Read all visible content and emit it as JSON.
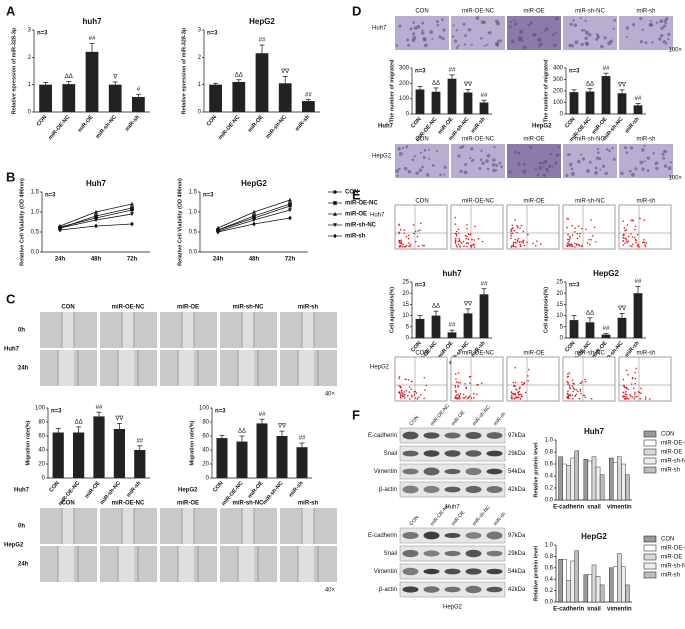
{
  "panel_labels": [
    "A",
    "B",
    "C",
    "D",
    "E",
    "F"
  ],
  "chart_data": [
    {
      "type": "bar",
      "title": "huh7",
      "note": "n=3",
      "ylabel": "Relative epression of miR-328-3p",
      "categories": [
        "CON",
        "miR-OE-NC",
        "miR-OE",
        "miR-sh-NC",
        "miR-sh"
      ],
      "values": [
        1.0,
        1.02,
        2.2,
        1.0,
        0.55
      ],
      "errors": [
        0.08,
        0.1,
        0.3,
        0.1,
        0.1
      ],
      "annotations": [
        null,
        "ΔΔ",
        "##",
        "∇",
        "#"
      ],
      "color": "#222222",
      "ylim": [
        0,
        3
      ],
      "yticks": [
        0,
        1,
        2,
        3
      ]
    },
    {
      "type": "bar",
      "title": "HepG2",
      "note": "n=3",
      "ylabel": "Relative epression of miR-328-3p",
      "categories": [
        "CON",
        "miR-OE-NC",
        "miR-OE",
        "miR-sh-NC",
        "miR-sh"
      ],
      "values": [
        1.0,
        1.1,
        2.15,
        1.05,
        0.4
      ],
      "errors": [
        0.05,
        0.08,
        0.3,
        0.25,
        0.05
      ],
      "annotations": [
        null,
        "ΔΔ",
        "##",
        "∇∇",
        "##"
      ],
      "color": "#222222",
      "ylim": [
        0,
        3
      ],
      "yticks": [
        0,
        1,
        2,
        3
      ]
    },
    {
      "type": "line",
      "title": "Huh7",
      "note": "n=3",
      "ylabel": "Relative Cell Viability (OD 490nm)",
      "categories": [
        "24h",
        "48h",
        "72h"
      ],
      "ylim": [
        0,
        1.5
      ],
      "yticks": [
        {
          "value": 0,
          "label": "0.0"
        },
        {
          "value": 0.5,
          "label": "0.5"
        },
        {
          "value": 1,
          "label": "1.0"
        },
        {
          "value": 1.5,
          "label": "1.5"
        }
      ],
      "series": [
        {
          "name": "CON",
          "marker": "circle",
          "color": "#111111",
          "values": [
            0.62,
            0.85,
            1.05
          ]
        },
        {
          "name": "miR-OE-NC",
          "marker": "square",
          "color": "#111111",
          "values": [
            0.6,
            0.9,
            1.1
          ]
        },
        {
          "name": "miR-OE",
          "marker": "triangle",
          "color": "#111111",
          "values": [
            0.65,
            1.0,
            1.2
          ]
        },
        {
          "name": "miR-sh-NC",
          "marker": "triangle-down",
          "color": "#111111",
          "values": [
            0.6,
            0.8,
            0.95
          ]
        },
        {
          "name": "miR-sh",
          "marker": "diamond",
          "color": "#111111",
          "values": [
            0.55,
            0.65,
            0.7
          ]
        }
      ]
    },
    {
      "type": "line",
      "title": "HepG2",
      "note": "n=3",
      "ylabel": "Relative Cell Viability (OD 490nm)",
      "categories": [
        "24h",
        "48h",
        "72h"
      ],
      "legend": "right",
      "ylim": [
        0,
        1.5
      ],
      "yticks": [
        {
          "value": 0,
          "label": "0.0"
        },
        {
          "value": 0.5,
          "label": "0.5"
        },
        {
          "value": 1,
          "label": "1.0"
        },
        {
          "value": 1.5,
          "label": "1.5"
        }
      ],
      "series": [
        {
          "name": "CON",
          "marker": "circle",
          "color": "#111111",
          "values": [
            0.55,
            0.85,
            1.15
          ]
        },
        {
          "name": "miR-OE-NC",
          "marker": "square",
          "color": "#111111",
          "values": [
            0.55,
            0.9,
            1.2
          ]
        },
        {
          "name": "miR-OE",
          "marker": "triangle",
          "color": "#111111",
          "values": [
            0.6,
            1.0,
            1.3
          ]
        },
        {
          "name": "miR-sh-NC",
          "marker": "triangle-down",
          "color": "#111111",
          "values": [
            0.52,
            0.8,
            1.05
          ]
        },
        {
          "name": "miR-sh",
          "marker": "diamond",
          "color": "#111111",
          "values": [
            0.5,
            0.7,
            0.85
          ]
        }
      ]
    },
    {
      "type": "bar",
      "title": "Huh7",
      "title_position": "bottom-left",
      "note": "n=3",
      "ylabel": "Migration rate(%)",
      "categories": [
        "CON",
        "miR-OE-NC",
        "miR-OE",
        "miR-sh-NC",
        "miR-sh"
      ],
      "values": [
        65,
        65,
        88,
        70,
        40
      ],
      "errors": [
        6,
        8,
        6,
        8,
        6
      ],
      "annotations": [
        null,
        "ΔΔ",
        "##",
        "∇∇",
        "##"
      ],
      "color": "#222222",
      "ylim": [
        0,
        100
      ],
      "yticks": [
        0,
        20,
        40,
        60,
        80,
        100
      ]
    },
    {
      "type": "bar",
      "title": "HepG2",
      "title_position": "bottom-left",
      "note": "n=3",
      "ylabel": "Migration rate(%)",
      "categories": [
        "CON",
        "miR-OE-NC",
        "miR-OE",
        "miR-sh-NC",
        "miR-sh"
      ],
      "values": [
        57,
        52,
        78,
        60,
        44
      ],
      "errors": [
        4,
        8,
        6,
        7,
        6
      ],
      "annotations": [
        null,
        "ΔΔ",
        "##",
        "∇∇",
        "##"
      ],
      "color": "#222222",
      "ylim": [
        0,
        100
      ],
      "yticks": [
        0,
        20,
        40,
        60,
        80,
        100
      ]
    },
    {
      "type": "bar",
      "title": "Huh7",
      "title_position": "bottom-left",
      "note": "n=3",
      "ylabel": "The number of migrated",
      "categories": [
        "CON",
        "miR-OE-NC",
        "miR-OE",
        "miR-sh-NC",
        "miR-sh"
      ],
      "values": [
        160,
        145,
        230,
        140,
        75
      ],
      "errors": [
        20,
        25,
        25,
        20,
        15
      ],
      "annotations": [
        null,
        "ΔΔ",
        "##",
        "∇∇",
        "##"
      ],
      "color": "#222222",
      "ylim": [
        0,
        300
      ],
      "yticks": [
        0,
        100,
        200,
        300
      ]
    },
    {
      "type": "bar",
      "title": "HepG2",
      "title_position": "bottom-left",
      "note": "n=3",
      "ylabel": "The number of migrated",
      "categories": [
        "CON",
        "miR-OE-NC",
        "miR-OE",
        "miR-sh-NC",
        "miR-sh"
      ],
      "values": [
        190,
        195,
        330,
        180,
        75
      ],
      "errors": [
        20,
        25,
        25,
        30,
        15
      ],
      "annotations": [
        null,
        "ΔΔ",
        "##",
        "∇∇",
        "##"
      ],
      "color": "#222222",
      "ylim": [
        0,
        400
      ],
      "yticks": [
        0,
        100,
        200,
        300,
        400
      ]
    },
    {
      "type": "bar",
      "title": "huh7",
      "note": "n=3",
      "ylabel": "Cell apoptosis(%)",
      "categories": [
        "CON",
        "miR-OE-NC",
        "miR-OE",
        "miR-sh-NC",
        "miR-sh"
      ],
      "values": [
        8.5,
        10,
        2.5,
        11,
        19.5
      ],
      "errors": [
        1.5,
        2,
        1,
        2,
        2.5
      ],
      "annotations": [
        null,
        "ΔΔ",
        "##",
        "∇∇",
        "##"
      ],
      "color": "#222222",
      "ylim": [
        0,
        25
      ],
      "yticks": [
        0,
        5,
        10,
        15,
        20,
        25
      ]
    },
    {
      "type": "bar",
      "title": "HepG2",
      "note": "n=3",
      "ylabel": "Cell apoptosis(%)",
      "categories": [
        "CON",
        "miR-OE-NC",
        "miR-OE",
        "miR-sh-NC",
        "miR-sh"
      ],
      "values": [
        8,
        7,
        1.5,
        9,
        20
      ],
      "errors": [
        2,
        2,
        0.5,
        2,
        3
      ],
      "annotations": [
        null,
        "ΔΔ",
        "##",
        "∇∇",
        "##"
      ],
      "color": "#222222",
      "ylim": [
        0,
        25
      ],
      "yticks": [
        0,
        5,
        10,
        15,
        20,
        25
      ]
    },
    {
      "type": "grouped-bar",
      "title": "Huh7",
      "ylabel": "Relative protein level",
      "categories": [
        "E-cadherin",
        "snail",
        "vimentin"
      ],
      "legend": "right",
      "ylim": [
        0,
        1
      ],
      "yticks": [
        {
          "value": 0,
          "label": "0.0"
        },
        {
          "value": 0.2,
          "label": "0.2"
        },
        {
          "value": 0.4,
          "label": "0.4"
        },
        {
          "value": 0.6,
          "label": "0.6"
        },
        {
          "value": 0.8,
          "label": "0.8"
        },
        {
          "value": 1,
          "label": "1.0"
        }
      ],
      "series": [
        {
          "name": "CON",
          "color": "#9a9a9a",
          "values": [
            0.72,
            0.68,
            0.7
          ]
        },
        {
          "name": "miR-OE-NC",
          "color": "#ffffff",
          "values": [
            0.6,
            0.65,
            0.62
          ]
        },
        {
          "name": "miR-OE",
          "color": "#d9d9d9",
          "values": [
            0.58,
            0.72,
            0.72
          ]
        },
        {
          "name": "miR-sh-NC",
          "color": "#ededed",
          "values": [
            0.7,
            0.55,
            0.6
          ]
        },
        {
          "name": "miR-sh",
          "color": "#bdbdbd",
          "values": [
            0.82,
            0.42,
            0.42
          ]
        }
      ]
    },
    {
      "type": "grouped-bar",
      "title": "HepG2",
      "ylabel": "Relative protein level",
      "categories": [
        "E-cadherin",
        "snail",
        "vimentin"
      ],
      "legend": "right",
      "ylim": [
        0,
        1
      ],
      "yticks": [
        {
          "value": 0,
          "label": "0.0"
        },
        {
          "value": 0.2,
          "label": "0.2"
        },
        {
          "value": 0.4,
          "label": "0.4"
        },
        {
          "value": 0.6,
          "label": "0.6"
        },
        {
          "value": 0.8,
          "label": "0.8"
        },
        {
          "value": 1,
          "label": "1.0"
        }
      ],
      "series": [
        {
          "name": "CON",
          "color": "#9a9a9a",
          "values": [
            0.75,
            0.48,
            0.6
          ]
        },
        {
          "name": "miR-OE-NC",
          "color": "#ffffff",
          "values": [
            0.75,
            0.48,
            0.62
          ]
        },
        {
          "name": "miR-OE",
          "color": "#d9d9d9",
          "values": [
            0.38,
            0.65,
            0.85
          ]
        },
        {
          "name": "miR-sh-NC",
          "color": "#ededed",
          "values": [
            0.72,
            0.45,
            0.62
          ]
        },
        {
          "name": "miR-sh",
          "color": "#bdbdbd",
          "values": [
            0.9,
            0.3,
            0.3
          ]
        }
      ]
    }
  ],
  "images": {
    "C": {
      "rows": [
        "0h",
        "24h"
      ],
      "cells": [
        "Huh7",
        "HepG2"
      ],
      "magnification": "40×"
    },
    "D": {
      "cells": [
        "Huh7",
        "HepG2"
      ],
      "magnification": "100×"
    },
    "E": {
      "cells": [
        "Huh7",
        "HepG2"
      ]
    }
  },
  "blots": [
    {
      "cell": "Huh7",
      "lanes": [
        "CON",
        "miR-OE-NC",
        "miR-OE",
        "miR-sh-NC",
        "miR-sh"
      ],
      "rows": [
        {
          "name": "E-cadherin",
          "size": "97kDa"
        },
        {
          "name": "Snail",
          "size": "29kDa"
        },
        {
          "name": "Vimentin",
          "size": "54kDa"
        },
        {
          "name": "β-actin",
          "size": "42kDa"
        }
      ]
    },
    {
      "cell": "HepG2",
      "lanes": [
        "CON",
        "miR-OE-NC",
        "miR-OE",
        "miR-sh-NC",
        "miR-sh"
      ],
      "rows": [
        {
          "name": "E-cadherin",
          "size": "97kDa"
        },
        {
          "name": "Snail",
          "size": "29kDa"
        },
        {
          "name": "Vimentin",
          "size": "54kDa"
        },
        {
          "name": "β-actin",
          "size": "42kDa"
        }
      ]
    }
  ]
}
